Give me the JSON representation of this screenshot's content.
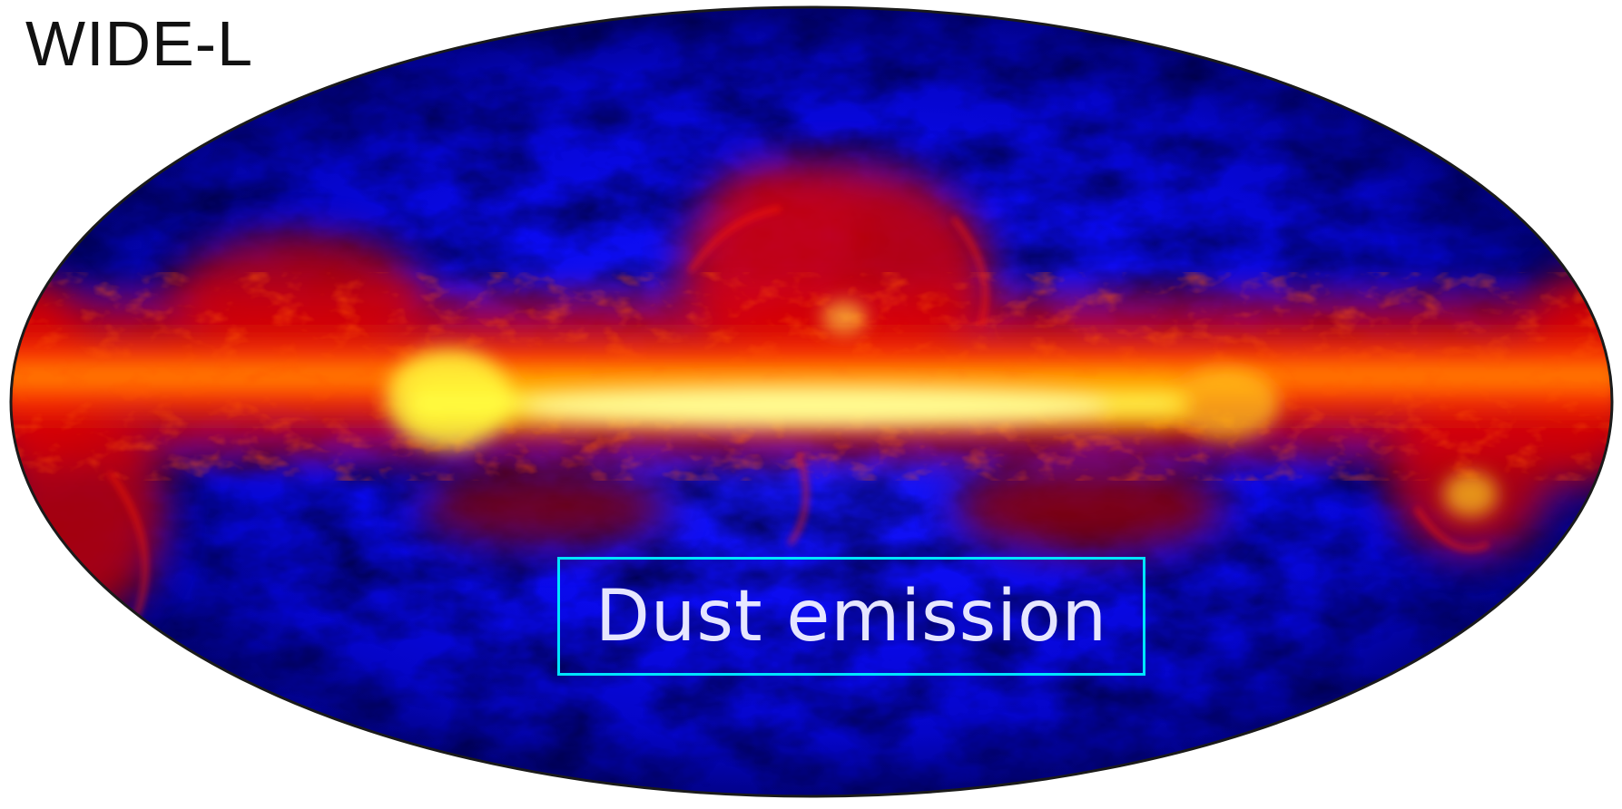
{
  "title": "WIDE-L",
  "label": "Dust emission",
  "colors": {
    "background": "#ffffff",
    "sky_low": "#0000ff",
    "sky_dark": "#000040",
    "emission_mid": "#ff1a00",
    "emission_high": "#ffff40",
    "label_text": "#e6e6ff",
    "label_border": "#00e5ff"
  }
}
